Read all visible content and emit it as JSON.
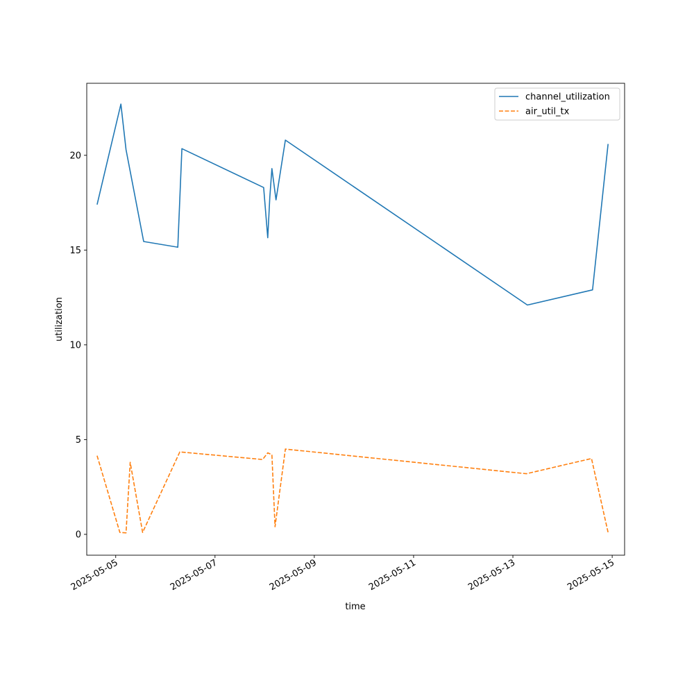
{
  "chart_data": {
    "type": "line",
    "title": "",
    "xlabel": "time",
    "ylabel": "utilization",
    "x_axis_type": "date",
    "xlim": [
      "2025-05-04 10:00",
      "2025-05-15 06:00"
    ],
    "ylim": [
      -1.1,
      23.8
    ],
    "x_ticks": [
      "2025-05-05",
      "2025-05-07",
      "2025-05-09",
      "2025-05-11",
      "2025-05-13",
      "2025-05-15"
    ],
    "y_ticks": [
      0,
      5,
      10,
      15,
      20
    ],
    "grid": false,
    "legend": "top-right",
    "series": [
      {
        "name": "channel_utilization",
        "color": "#1f77b4",
        "dash": "solid",
        "points": [
          [
            "2025-05-04 15:00",
            17.4
          ],
          [
            "2025-05-05 02:30",
            22.7
          ],
          [
            "2025-05-05 05:00",
            20.3
          ],
          [
            "2025-05-05 13:30",
            15.45
          ],
          [
            "2025-05-06 06:00",
            15.15
          ],
          [
            "2025-05-06 08:00",
            20.35
          ],
          [
            "2025-05-07 23:30",
            18.3
          ],
          [
            "2025-05-08 01:30",
            15.65
          ],
          [
            "2025-05-08 02:30",
            17.8
          ],
          [
            "2025-05-08 03:30",
            19.3
          ],
          [
            "2025-05-08 05:30",
            17.65
          ],
          [
            "2025-05-08 10:00",
            20.8
          ],
          [
            "2025-05-13 07:00",
            12.1
          ],
          [
            "2025-05-14 14:30",
            12.9
          ],
          [
            "2025-05-14 22:00",
            20.6
          ]
        ]
      },
      {
        "name": "air_util_tx",
        "color": "#ff7f0e",
        "dash": "dashed",
        "points": [
          [
            "2025-05-04 15:00",
            4.15
          ],
          [
            "2025-05-05 02:00",
            0.1
          ],
          [
            "2025-05-05 05:00",
            0.08
          ],
          [
            "2025-05-05 07:00",
            3.8
          ],
          [
            "2025-05-05 13:00",
            0.1
          ],
          [
            "2025-05-06 07:00",
            4.35
          ],
          [
            "2025-05-07 23:00",
            3.95
          ],
          [
            "2025-05-08 01:30",
            4.3
          ],
          [
            "2025-05-08 03:30",
            4.2
          ],
          [
            "2025-05-08 05:00",
            0.4
          ],
          [
            "2025-05-08 10:00",
            4.5
          ],
          [
            "2025-05-13 06:30",
            3.2
          ],
          [
            "2025-05-14 14:00",
            4.0
          ],
          [
            "2025-05-14 22:00",
            0.1
          ]
        ]
      }
    ]
  }
}
